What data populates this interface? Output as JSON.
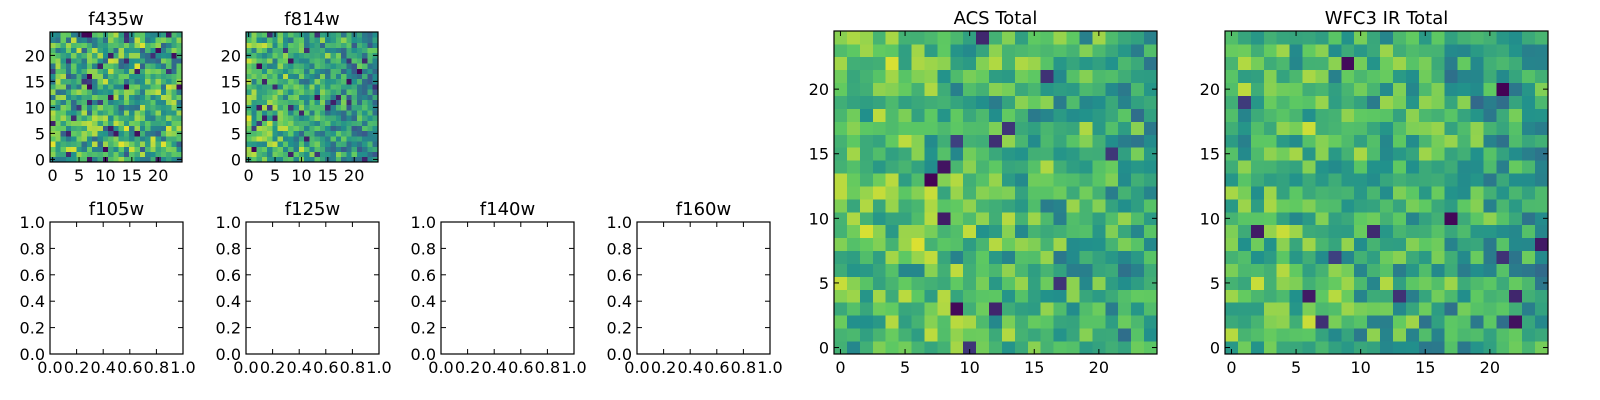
{
  "colormap": {
    "name": "viridis",
    "stops": [
      "#440154",
      "#3b528b",
      "#21918c",
      "#5ec962",
      "#fde725"
    ]
  },
  "chart_data": [
    {
      "id": "f435w",
      "type": "heatmap",
      "title": "f435w",
      "grid": [
        25,
        25
      ],
      "xticks": [
        "0",
        "5",
        "10",
        "15",
        "20"
      ],
      "yticks": [
        "0",
        "5",
        "10",
        "15",
        "20"
      ],
      "xlim": [
        -0.5,
        24.5
      ],
      "ylim": [
        -0.5,
        24.5
      ],
      "seed": 11,
      "base": 0.62,
      "spread": 0.55,
      "dark_fraction": 0.05,
      "gradient": 0.0,
      "grid_on": false
    },
    {
      "id": "f814w",
      "type": "heatmap",
      "title": "f814w",
      "grid": [
        25,
        25
      ],
      "xticks": [
        "0",
        "5",
        "10",
        "15",
        "20"
      ],
      "yticks": [
        "0",
        "5",
        "10",
        "15",
        "20"
      ],
      "xlim": [
        -0.5,
        24.5
      ],
      "ylim": [
        -0.5,
        24.5
      ],
      "seed": 23,
      "base": 0.6,
      "spread": 0.45,
      "dark_fraction": 0.05,
      "gradient": 0.35,
      "grid_on": false
    },
    {
      "id": "f105w",
      "type": "heatmap",
      "title": "f105w",
      "empty": true,
      "xticks": [
        "0.0",
        "0.2",
        "0.4",
        "0.6",
        "0.8",
        "1.0"
      ],
      "yticks": [
        "0.0",
        "0.2",
        "0.4",
        "0.6",
        "0.8",
        "1.0"
      ],
      "xlim": [
        0,
        1
      ],
      "ylim": [
        0,
        1
      ],
      "grid_on": false
    },
    {
      "id": "f125w",
      "type": "heatmap",
      "title": "f125w",
      "empty": true,
      "xticks": [
        "0.0",
        "0.2",
        "0.4",
        "0.6",
        "0.8",
        "1.0"
      ],
      "yticks": [
        "0.0",
        "0.2",
        "0.4",
        "0.6",
        "0.8",
        "1.0"
      ],
      "xlim": [
        0,
        1
      ],
      "ylim": [
        0,
        1
      ],
      "grid_on": false
    },
    {
      "id": "f140w",
      "type": "heatmap",
      "title": "f140w",
      "empty": true,
      "xticks": [
        "0.0",
        "0.2",
        "0.4",
        "0.6",
        "0.8",
        "1.0"
      ],
      "yticks": [
        "0.0",
        "0.2",
        "0.4",
        "0.6",
        "0.8",
        "1.0"
      ],
      "xlim": [
        0,
        1
      ],
      "ylim": [
        0,
        1
      ],
      "grid_on": false
    },
    {
      "id": "f160w",
      "type": "heatmap",
      "title": "f160w",
      "empty": true,
      "xticks": [
        "0.0",
        "0.2",
        "0.4",
        "0.6",
        "0.8",
        "1.0"
      ],
      "yticks": [
        "0.0",
        "0.2",
        "0.4",
        "0.6",
        "0.8",
        "1.0"
      ],
      "xlim": [
        0,
        1
      ],
      "ylim": [
        0,
        1
      ],
      "grid_on": false
    },
    {
      "id": "acs_total",
      "type": "heatmap",
      "title": "ACS Total",
      "grid": [
        25,
        25
      ],
      "xticks": [
        "0",
        "5",
        "10",
        "15",
        "20"
      ],
      "yticks": [
        "0",
        "5",
        "10",
        "15",
        "20"
      ],
      "xlim": [
        -0.5,
        24.5
      ],
      "ylim": [
        -0.5,
        24.5
      ],
      "seed": 37,
      "base": 0.66,
      "spread": 0.4,
      "dark_fraction": 0.025,
      "gradient": 0.2,
      "grid_on": false
    },
    {
      "id": "wfc3_ir_total",
      "type": "heatmap",
      "title": "WFC3 IR Total",
      "grid": [
        25,
        25
      ],
      "xticks": [
        "0",
        "5",
        "10",
        "15",
        "20"
      ],
      "yticks": [
        "0",
        "5",
        "10",
        "15",
        "20"
      ],
      "xlim": [
        -0.5,
        24.5
      ],
      "ylim": [
        -0.5,
        24.5
      ],
      "seed": 53,
      "base": 0.63,
      "spread": 0.42,
      "dark_fraction": 0.025,
      "gradient": 0.22,
      "grid_on": false
    }
  ]
}
